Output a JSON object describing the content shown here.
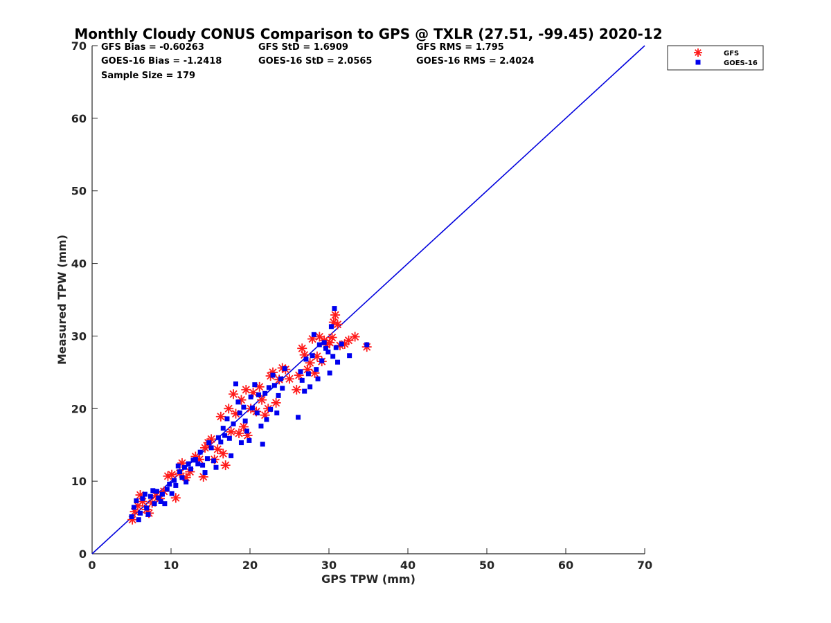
{
  "chart_data": {
    "type": "scatter",
    "title": "Monthly Cloudy CONUS Comparison to GPS @ TXLR (27.51, -99.45) 2020-12",
    "xlabel": "GPS TPW (mm)",
    "ylabel": "Measured TPW (mm)",
    "xlim": [
      0,
      70
    ],
    "ylim": [
      0,
      70
    ],
    "xticks": [
      "0",
      "10",
      "20",
      "30",
      "40",
      "50",
      "60",
      "70"
    ],
    "yticks": [
      "0",
      "10",
      "20",
      "30",
      "40",
      "50",
      "60",
      "70"
    ],
    "grid": false,
    "legend_position": "outside-top-right",
    "stats": [
      [
        "GFS Bias = -0.60263",
        "GFS StD = 1.6909",
        "GFS RMS = 1.795"
      ],
      [
        "GOES-16 Bias = -1.2418",
        "GOES-16 StD = 2.0565",
        "GOES-16 RMS = 2.4024"
      ],
      [
        "Sample Size = 179",
        "",
        ""
      ]
    ],
    "reference_line": {
      "from": [
        0,
        0
      ],
      "to": [
        70,
        70
      ],
      "color": "#0000dd"
    },
    "series": [
      {
        "name": "GFS",
        "marker": "asterisk",
        "color": "#ff1a1a",
        "points": [
          [
            5.1,
            4.7
          ],
          [
            5.4,
            5.8
          ],
          [
            5.8,
            6.6
          ],
          [
            6.1,
            8.1
          ],
          [
            6.4,
            7.2
          ],
          [
            6.9,
            6.1
          ],
          [
            7.2,
            5.6
          ],
          [
            7.6,
            7.0
          ],
          [
            8.1,
            8.0
          ],
          [
            8.6,
            7.6
          ],
          [
            9.1,
            8.6
          ],
          [
            9.6,
            10.7
          ],
          [
            10.1,
            10.9
          ],
          [
            10.6,
            7.7
          ],
          [
            11.1,
            11.1
          ],
          [
            11.4,
            12.5
          ],
          [
            11.9,
            10.5
          ],
          [
            12.4,
            11.3
          ],
          [
            13.1,
            13.4
          ],
          [
            13.6,
            13.0
          ],
          [
            14.1,
            10.6
          ],
          [
            14.3,
            14.6
          ],
          [
            14.7,
            15.3
          ],
          [
            15.1,
            15.8
          ],
          [
            15.5,
            13.0
          ],
          [
            15.9,
            14.4
          ],
          [
            16.3,
            18.9
          ],
          [
            16.6,
            13.8
          ],
          [
            16.9,
            12.2
          ],
          [
            17.3,
            20.0
          ],
          [
            17.6,
            16.8
          ],
          [
            17.9,
            22.0
          ],
          [
            18.2,
            19.3
          ],
          [
            18.6,
            16.6
          ],
          [
            18.9,
            21.2
          ],
          [
            19.2,
            17.5
          ],
          [
            19.5,
            22.6
          ],
          [
            19.7,
            16.3
          ],
          [
            20.1,
            20.0
          ],
          [
            20.4,
            22.2
          ],
          [
            20.8,
            19.6
          ],
          [
            21.2,
            23.0
          ],
          [
            21.5,
            21.2
          ],
          [
            21.9,
            19.1
          ],
          [
            22.3,
            20.0
          ],
          [
            22.6,
            24.5
          ],
          [
            22.9,
            25.0
          ],
          [
            23.3,
            20.8
          ],
          [
            23.7,
            24.0
          ],
          [
            24.1,
            25.6
          ],
          [
            24.5,
            25.4
          ],
          [
            25.0,
            24.1
          ],
          [
            25.9,
            22.6
          ],
          [
            26.2,
            24.6
          ],
          [
            26.6,
            28.3
          ],
          [
            26.9,
            27.4
          ],
          [
            27.3,
            25.4
          ],
          [
            27.6,
            26.3
          ],
          [
            27.9,
            29.6
          ],
          [
            28.2,
            24.9
          ],
          [
            28.5,
            27.2
          ],
          [
            28.8,
            29.9
          ],
          [
            29.1,
            26.5
          ],
          [
            29.4,
            29.4
          ],
          [
            29.7,
            28.8
          ],
          [
            30.1,
            29.1
          ],
          [
            30.4,
            29.8
          ],
          [
            30.6,
            31.9
          ],
          [
            30.8,
            32.9
          ],
          [
            31.1,
            31.6
          ],
          [
            31.4,
            28.7
          ],
          [
            32.0,
            28.9
          ],
          [
            32.5,
            29.4
          ],
          [
            33.3,
            29.9
          ],
          [
            34.8,
            28.5
          ]
        ]
      },
      {
        "name": "GOES-16",
        "marker": "square",
        "color": "#0000ee",
        "points": [
          [
            5.0,
            5.1
          ],
          [
            5.3,
            6.4
          ],
          [
            5.6,
            7.3
          ],
          [
            5.9,
            4.7
          ],
          [
            6.1,
            5.6
          ],
          [
            6.4,
            7.6
          ],
          [
            6.7,
            8.2
          ],
          [
            6.9,
            6.3
          ],
          [
            7.1,
            5.4
          ],
          [
            7.4,
            7.9
          ],
          [
            7.7,
            8.7
          ],
          [
            7.9,
            6.9
          ],
          [
            8.2,
            8.6
          ],
          [
            8.4,
            7.7
          ],
          [
            8.7,
            7.2
          ],
          [
            8.9,
            8.2
          ],
          [
            9.2,
            6.9
          ],
          [
            9.5,
            8.9
          ],
          [
            9.8,
            9.6
          ],
          [
            10.1,
            8.3
          ],
          [
            10.4,
            10.1
          ],
          [
            10.6,
            9.4
          ],
          [
            10.9,
            12.1
          ],
          [
            11.1,
            11.3
          ],
          [
            11.4,
            10.5
          ],
          [
            11.7,
            11.9
          ],
          [
            11.9,
            9.9
          ],
          [
            12.2,
            12.4
          ],
          [
            12.5,
            11.7
          ],
          [
            12.8,
            12.9
          ],
          [
            13.1,
            13.0
          ],
          [
            13.4,
            12.4
          ],
          [
            13.7,
            14.0
          ],
          [
            14.0,
            12.2
          ],
          [
            14.3,
            11.2
          ],
          [
            14.6,
            13.1
          ],
          [
            14.8,
            15.3
          ],
          [
            15.1,
            14.6
          ],
          [
            15.4,
            12.8
          ],
          [
            15.7,
            11.9
          ],
          [
            16.0,
            16.0
          ],
          [
            16.3,
            15.4
          ],
          [
            16.6,
            17.3
          ],
          [
            16.8,
            16.3
          ],
          [
            17.1,
            18.6
          ],
          [
            17.4,
            15.9
          ],
          [
            17.6,
            13.5
          ],
          [
            17.9,
            17.9
          ],
          [
            18.2,
            23.4
          ],
          [
            18.5,
            20.9
          ],
          [
            18.7,
            19.4
          ],
          [
            18.9,
            15.3
          ],
          [
            19.2,
            20.2
          ],
          [
            19.4,
            18.3
          ],
          [
            19.6,
            16.9
          ],
          [
            19.9,
            15.6
          ],
          [
            20.1,
            21.6
          ],
          [
            20.3,
            20.1
          ],
          [
            20.6,
            23.3
          ],
          [
            20.9,
            19.4
          ],
          [
            21.1,
            21.9
          ],
          [
            21.4,
            17.6
          ],
          [
            21.6,
            15.1
          ],
          [
            21.9,
            22.1
          ],
          [
            22.1,
            18.5
          ],
          [
            22.4,
            22.9
          ],
          [
            22.6,
            19.9
          ],
          [
            22.9,
            24.6
          ],
          [
            23.1,
            23.2
          ],
          [
            23.4,
            19.4
          ],
          [
            23.6,
            21.8
          ],
          [
            23.9,
            24.1
          ],
          [
            24.1,
            22.8
          ],
          [
            24.4,
            25.5
          ],
          [
            26.1,
            18.8
          ],
          [
            26.4,
            25.1
          ],
          [
            26.6,
            23.9
          ],
          [
            26.9,
            22.4
          ],
          [
            27.1,
            26.8
          ],
          [
            27.4,
            24.8
          ],
          [
            27.6,
            23.0
          ],
          [
            27.9,
            27.3
          ],
          [
            28.1,
            30.2
          ],
          [
            28.4,
            25.4
          ],
          [
            28.6,
            24.1
          ],
          [
            28.8,
            28.8
          ],
          [
            29.1,
            26.6
          ],
          [
            29.4,
            29.1
          ],
          [
            29.6,
            28.3
          ],
          [
            29.9,
            27.8
          ],
          [
            30.1,
            24.9
          ],
          [
            30.3,
            31.3
          ],
          [
            30.5,
            27.2
          ],
          [
            30.7,
            33.8
          ],
          [
            30.9,
            28.4
          ],
          [
            31.1,
            26.4
          ],
          [
            31.6,
            28.9
          ],
          [
            32.6,
            27.3
          ],
          [
            34.8,
            28.8
          ]
        ]
      }
    ]
  }
}
